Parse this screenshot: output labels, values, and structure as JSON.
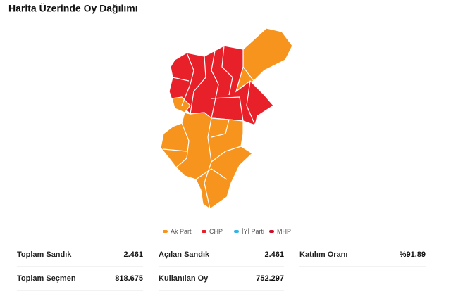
{
  "header": {
    "title": "Harita Üzerinde Oy Dağılımı"
  },
  "legend": [
    {
      "name": "Ak Parti",
      "color": "#f7941d"
    },
    {
      "name": "CHP",
      "color": "#e8202a"
    },
    {
      "name": "İYİ Parti",
      "color": "#2eb6e8"
    },
    {
      "name": "MHP",
      "color": "#c8102e"
    }
  ],
  "stats": [
    [
      {
        "label": "Toplam Sandık",
        "value": "2.461"
      },
      {
        "label": "Açılan Sandık",
        "value": "2.461"
      },
      {
        "label": "Katılım Oranı",
        "value": "%91.89"
      }
    ],
    [
      {
        "label": "Toplam Seçmen",
        "value": "818.675"
      },
      {
        "label": "Kullanılan Oy",
        "value": "752.297"
      }
    ]
  ]
}
